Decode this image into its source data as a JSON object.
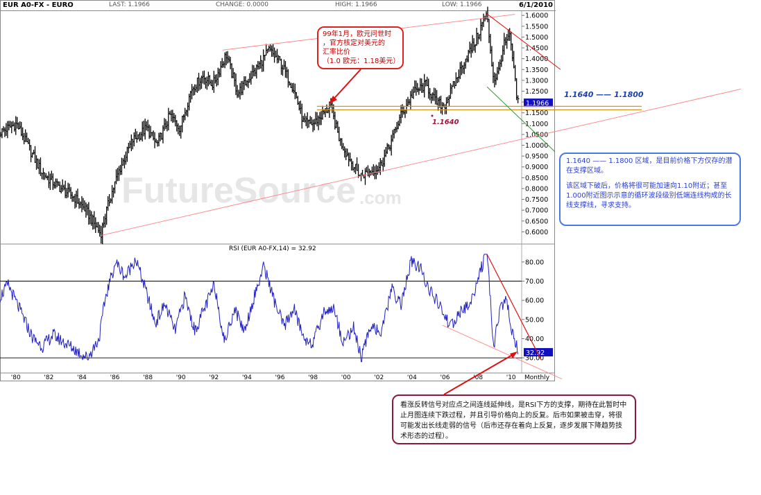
{
  "header": {
    "symbol": "EUR A0-FX - EURO",
    "last": "LAST: 1.1966",
    "change": "CHANGE: 0.0000",
    "high": "HIGH: 1.1966",
    "low": "LOW: 1.1966",
    "date": "6/1/2010"
  },
  "chart_data": [
    {
      "type": "line",
      "title": "EUR A0-FX - EURO",
      "watermark": "FutureSource.com",
      "ylim": [
        0.55,
        1.62
      ],
      "y_ticks": [
        "0.6000",
        "0.6500",
        "0.7000",
        "0.7500",
        "0.8000",
        "0.8500",
        "0.9000",
        "0.9500",
        "1.0000",
        "1.0500",
        "1.1000",
        "1.1500",
        "1.2000",
        "1.2500",
        "1.3000",
        "1.3500",
        "1.4000",
        "1.4500",
        "1.5000",
        "1.5500",
        "1.6000"
      ],
      "last_value_label": "1.1966",
      "x": [
        1979.0,
        1980.0,
        1980.8,
        1981.5,
        1982.0,
        1982.7,
        1983.5,
        1984.2,
        1985.1,
        1985.6,
        1986.2,
        1987.0,
        1987.9,
        1988.5,
        1989.3,
        1989.9,
        1990.6,
        1991.3,
        1991.9,
        1992.7,
        1993.4,
        1994.0,
        1994.6,
        1995.3,
        1996.0,
        1996.8,
        1997.4,
        1998.0,
        1998.5,
        1999.0,
        1999.6,
        2000.3,
        2000.8,
        2001.5,
        2002.0,
        2002.6,
        2003.3,
        2004.0,
        2004.8,
        2005.4,
        2005.9,
        2006.5,
        2007.2,
        2007.8,
        2008.3,
        2008.5,
        2008.9,
        2009.2,
        2009.5,
        2009.9,
        2010.3,
        2010.4
      ],
      "y": [
        1.06,
        1.1,
        0.98,
        0.88,
        0.84,
        0.8,
        0.76,
        0.7,
        0.59,
        0.74,
        0.88,
        1.02,
        1.08,
        1.0,
        1.14,
        1.08,
        1.26,
        1.32,
        1.28,
        1.42,
        1.24,
        1.3,
        1.36,
        1.44,
        1.38,
        1.26,
        1.1,
        1.1,
        1.14,
        1.18,
        1.02,
        0.92,
        0.86,
        0.88,
        0.9,
        1.0,
        1.14,
        1.24,
        1.28,
        1.2,
        1.18,
        1.28,
        1.4,
        1.48,
        1.58,
        1.6,
        1.3,
        1.34,
        1.46,
        1.5,
        1.22,
        1.1966
      ],
      "series": [],
      "annotations": [
        {
          "text": "1.1640 —— 1.1800",
          "value": 1.17
        },
        {
          "text": "1.1640",
          "value": 1.164
        }
      ]
    },
    {
      "type": "line",
      "title": "RSI (EUR A0-FX,14) = 32.92",
      "ylim": [
        25,
        85
      ],
      "y_ticks": [
        "30.00",
        "40.00",
        "50.00",
        "60.00",
        "70.00",
        "80.00"
      ],
      "reference_lines": [
        30,
        70
      ],
      "last_value_label": "32.92",
      "x_ticks": [
        "'80",
        "'82",
        "'84",
        "'86",
        "'88",
        "'90",
        "'92",
        "'94",
        "'96",
        "'98",
        "'00",
        "'02",
        "'04",
        "'06",
        "'08",
        "'10",
        "Monthly"
      ],
      "x": [
        1979.0,
        1979.5,
        1980.2,
        1981.0,
        1981.6,
        1982.2,
        1982.9,
        1983.6,
        1984.3,
        1985.0,
        1985.4,
        1986.0,
        1986.6,
        1987.2,
        1987.8,
        1988.4,
        1989.0,
        1989.6,
        1990.2,
        1990.8,
        1991.4,
        1992.0,
        1992.6,
        1993.2,
        1993.8,
        1994.4,
        1995.0,
        1995.6,
        1996.2,
        1996.8,
        1997.4,
        1998.0,
        1998.6,
        1999.2,
        1999.8,
        2000.4,
        2000.9,
        2001.5,
        2002.1,
        2002.7,
        2003.3,
        2003.9,
        2004.5,
        2005.1,
        2005.7,
        2006.3,
        2006.9,
        2007.5,
        2008.1,
        2008.5,
        2008.9,
        2009.3,
        2009.7,
        2010.0,
        2010.4
      ],
      "y": [
        62,
        68,
        55,
        40,
        36,
        42,
        38,
        34,
        30,
        40,
        62,
        80,
        72,
        82,
        66,
        48,
        58,
        44,
        62,
        44,
        56,
        68,
        38,
        56,
        44,
        62,
        78,
        60,
        46,
        56,
        40,
        38,
        54,
        56,
        38,
        46,
        30,
        48,
        42,
        66,
        58,
        80,
        76,
        64,
        56,
        46,
        54,
        58,
        76,
        84,
        36,
        56,
        60,
        44,
        32.92
      ]
    }
  ],
  "annotations": {
    "top_box": [
      "99年1月，欧元问世时",
      "，官方核定对美元的",
      "汇率比价",
      "（1.0 欧元：1.18美元）"
    ],
    "range_label": "1.1640 —— 1.1800",
    "level_label": "1.1640",
    "right_box_p1": "1.1640 —— 1.1800 区域，是目前价格下方仅存的潜在支撑区域。",
    "right_box_p2": "该区域下破后，价格将很可能加速向1.10附近；甚至1.000附近图示示意的循环波段级别低端连线构成的长线支撑线，寻求支持。",
    "bottom_box": "看涨反转信号对应点之间连线延伸线，是RSI下方的支撑，期待在此暂时中止月图连续下跌过程，并且引导价格向上的反复。后市如果被击穿，将很可能发出长线走弱的信号（后市还存在着向上反复，逐步发展下降趋势技术形态的过程）。"
  },
  "colors": {
    "price_bars": "#000000",
    "rsi_line": "#2020c0",
    "trend_red": "#ff8080",
    "trend_dark_red": "#e01010",
    "support_orange": "#d8941a",
    "green_line": "#2a9a2a",
    "last_label_bg": "#1010c0"
  }
}
